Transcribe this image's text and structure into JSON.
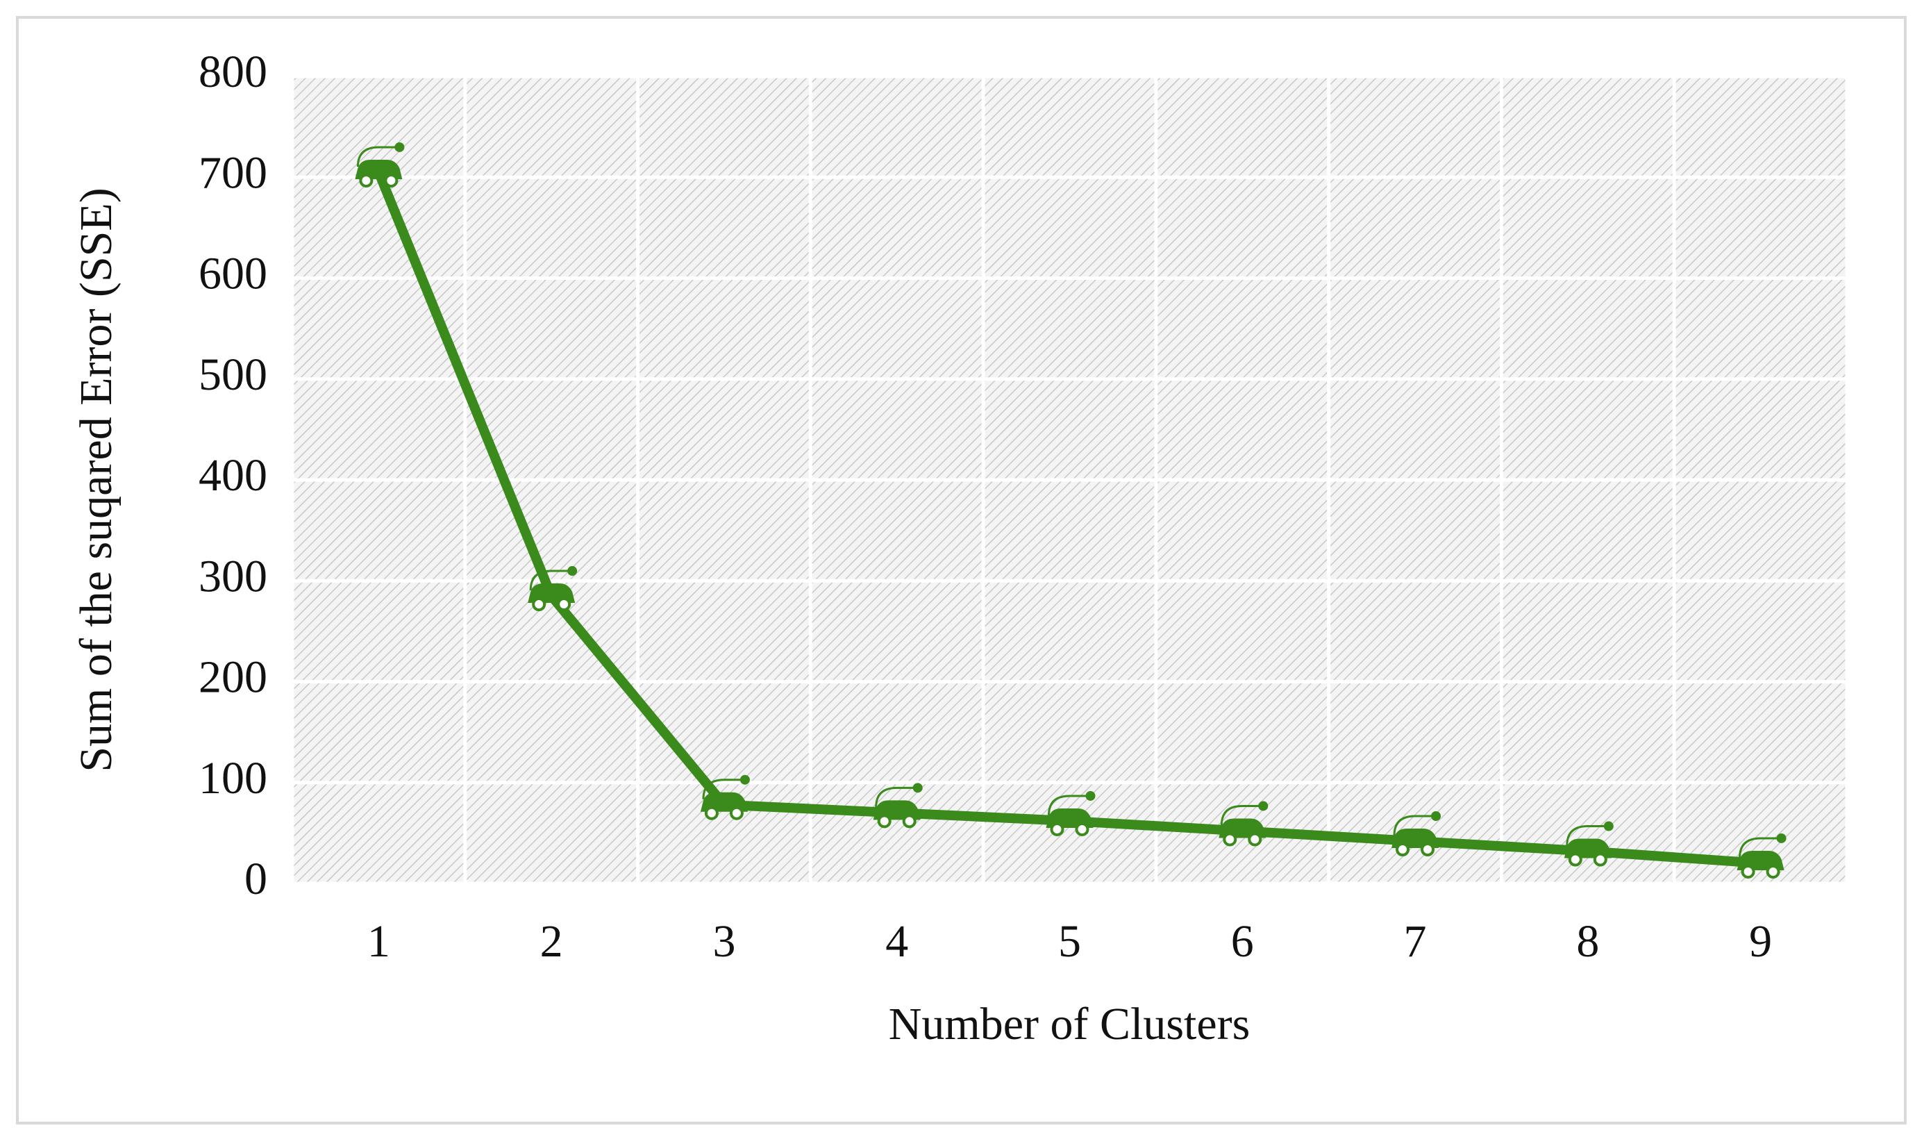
{
  "chart_data": {
    "type": "line",
    "x_label": "Number of Clusters",
    "y_label": "Sum of the suqared Error (SSE)",
    "categories": [
      "1",
      "2",
      "3",
      "4",
      "5",
      "6",
      "7",
      "8",
      "9"
    ],
    "values": [
      705,
      285,
      78,
      70,
      62,
      52,
      42,
      32,
      20
    ],
    "color": "#3a8a1c",
    "ylim": [
      0,
      800
    ],
    "yticks": [
      0,
      100,
      200,
      300,
      400,
      500,
      600,
      700,
      800
    ],
    "grid": true
  }
}
